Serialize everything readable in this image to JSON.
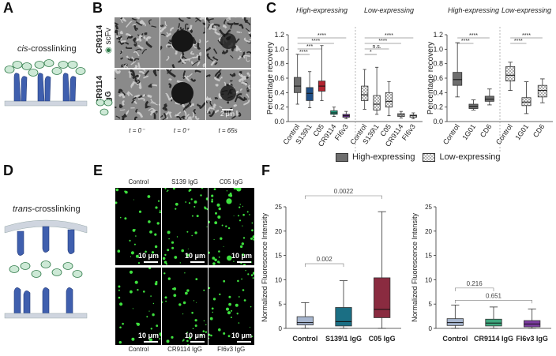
{
  "panels": {
    "A": "A",
    "B": "B",
    "C": "C",
    "D": "D",
    "E": "E",
    "F": "F"
  },
  "panelA": {
    "title_italic": "cis",
    "title_rest": "-crosslinking"
  },
  "panelD": {
    "title_italic": "trans",
    "title_rest": "-crosslinking"
  },
  "panelB": {
    "row1_label": "CR9114",
    "row1_sub": "scFv",
    "row2_label": "CR9114",
    "row2_sub": "IgG",
    "scalebar": "2 μm",
    "times": [
      "t = 0⁻",
      "t = 0⁺",
      "t = 65s"
    ],
    "colors": {
      "membrane": "#c8c8c8",
      "bleach": "#161616"
    }
  },
  "panelE": {
    "top_labels": [
      "Control",
      "S139 IgG",
      "C05 IgG"
    ],
    "bottom_labels": [
      "Control",
      "CR9114 IgG",
      "FI6v3 IgG"
    ],
    "scalebar": "10 μm",
    "colors": {
      "spot": "#3ee03e",
      "background": "#000000"
    }
  },
  "chart_data": [
    {
      "type": "box",
      "id": "C-left",
      "ylabel": "Percentage recovery",
      "ylim": [
        0,
        1.2
      ],
      "yticks": [
        "0.0",
        "0.2",
        "0.4",
        "0.6",
        "0.8",
        "1.0",
        "1.2"
      ],
      "group_labels": [
        "High-expressing",
        "Low-expressing"
      ],
      "categories": [
        "Control",
        "S139\\1",
        "C05",
        "CR9114",
        "FI6v3"
      ],
      "series": [
        {
          "name": "High-expressing",
          "boxes": [
            {
              "min": 0.24,
              "q1": 0.4,
              "median": 0.49,
              "q3": 0.61,
              "max": 0.93,
              "color": "#6e6e6e"
            },
            {
              "min": 0.19,
              "q1": 0.29,
              "median": 0.39,
              "q3": 0.47,
              "max": 0.69,
              "color": "#1f4f87"
            },
            {
              "min": 0.29,
              "q1": 0.42,
              "median": 0.49,
              "q3": 0.56,
              "max": 1.05,
              "color": "#b3232f"
            },
            {
              "min": 0.07,
              "q1": 0.1,
              "median": 0.12,
              "q3": 0.15,
              "max": 0.2,
              "color": "#1f9e7e"
            },
            {
              "min": 0.04,
              "q1": 0.06,
              "median": 0.08,
              "q3": 0.1,
              "max": 0.14,
              "color": "#6a2c91"
            }
          ]
        },
        {
          "name": "Low-expressing",
          "boxes": [
            {
              "min": 0.17,
              "q1": 0.29,
              "median": 0.37,
              "q3": 0.49,
              "max": 0.72,
              "color": "#6e6e6e"
            },
            {
              "min": 0.1,
              "q1": 0.16,
              "median": 0.24,
              "q3": 0.36,
              "max": 0.75,
              "color": "#1f4f87"
            },
            {
              "min": 0.08,
              "q1": 0.2,
              "median": 0.28,
              "q3": 0.4,
              "max": 0.55,
              "color": "#b3232f"
            },
            {
              "min": 0.05,
              "q1": 0.07,
              "median": 0.09,
              "q3": 0.11,
              "max": 0.14,
              "color": "#1f9e7e"
            },
            {
              "min": 0.04,
              "q1": 0.06,
              "median": 0.08,
              "q3": 0.09,
              "max": 0.12,
              "color": "#6a2c91"
            }
          ]
        }
      ],
      "significance": [
        {
          "group": 0,
          "from": 0,
          "to": 1,
          "label": "****"
        },
        {
          "group": 0,
          "from": 0,
          "to": 2,
          "label": "***"
        },
        {
          "group": 0,
          "from": 0,
          "to": 3,
          "label": "****"
        },
        {
          "group": 0,
          "from": 0,
          "to": 4,
          "label": "****"
        },
        {
          "group": 1,
          "from": 0,
          "to": 1,
          "label": "*"
        },
        {
          "group": 1,
          "from": 0,
          "to": 2,
          "label": "n.s."
        },
        {
          "group": 1,
          "from": 0,
          "to": 3,
          "label": "****"
        },
        {
          "group": 1,
          "from": 0,
          "to": 4,
          "label": "****"
        }
      ]
    },
    {
      "type": "box",
      "id": "C-right",
      "ylabel": "Percentage recovery",
      "ylim": [
        0,
        1.2
      ],
      "yticks": [
        "0.0",
        "0.2",
        "0.4",
        "0.6",
        "0.8",
        "1.0",
        "1.2"
      ],
      "group_labels": [
        "High-expressing",
        "Low-expressing"
      ],
      "categories": [
        "Control",
        "1G01",
        "CD6"
      ],
      "series": [
        {
          "name": "High-expressing",
          "boxes": [
            {
              "min": 0.34,
              "q1": 0.5,
              "median": 0.58,
              "q3": 0.68,
              "max": 1.09,
              "color": "#6e6e6e"
            },
            {
              "min": 0.16,
              "q1": 0.18,
              "median": 0.21,
              "q3": 0.24,
              "max": 0.3,
              "color": "#6e6e6e"
            },
            {
              "min": 0.23,
              "q1": 0.28,
              "median": 0.31,
              "q3": 0.35,
              "max": 0.45,
              "color": "#6e6e6e"
            }
          ]
        },
        {
          "name": "Low-expressing",
          "boxes": [
            {
              "min": 0.43,
              "q1": 0.56,
              "median": 0.64,
              "q3": 0.76,
              "max": 0.82,
              "color": "#6e6e6e"
            },
            {
              "min": 0.11,
              "q1": 0.22,
              "median": 0.27,
              "q3": 0.33,
              "max": 0.55,
              "color": "#6e6e6e"
            },
            {
              "min": 0.26,
              "q1": 0.34,
              "median": 0.43,
              "q3": 0.5,
              "max": 0.59,
              "color": "#6e6e6e"
            }
          ]
        }
      ],
      "significance": [
        {
          "group": 0,
          "from": 0,
          "to": 1,
          "label": "****"
        },
        {
          "group": 0,
          "from": 0,
          "to": 2,
          "label": "****"
        },
        {
          "group": 1,
          "from": 0,
          "to": 1,
          "label": "****"
        },
        {
          "group": 1,
          "from": 0,
          "to": 2,
          "label": "****"
        }
      ]
    },
    {
      "type": "box",
      "id": "F-left",
      "ylabel": "Normalized Fluorescence Intensity",
      "ylim": [
        0,
        25
      ],
      "yticks": [
        "0",
        "5",
        "10",
        "15",
        "20",
        "25"
      ],
      "categories": [
        "Control",
        "S139\\1 IgG",
        "C05 IgG"
      ],
      "boxes": [
        {
          "min": 0.0,
          "q1": 0.7,
          "median": 1.2,
          "q3": 2.4,
          "max": 5.3,
          "color": "#a7b6cf"
        },
        {
          "min": 0.0,
          "q1": 0.5,
          "median": 1.4,
          "q3": 4.3,
          "max": 9.8,
          "color": "#1b6f84"
        },
        {
          "min": 0.0,
          "q1": 2.2,
          "median": 3.9,
          "q3": 10.4,
          "max": 24.0,
          "color": "#8a2b40"
        }
      ],
      "significance": [
        {
          "from": 0,
          "to": 1,
          "label": "0.002"
        },
        {
          "from": 0,
          "to": 2,
          "label": "0.0022"
        }
      ]
    },
    {
      "type": "box",
      "id": "F-right",
      "ylabel": "Normalized Fluorescence Intensity",
      "ylim": [
        0,
        25
      ],
      "yticks": [
        "0",
        "5",
        "10",
        "15",
        "20",
        "25"
      ],
      "categories": [
        "Control",
        "CR9114 IgG",
        "FI6v3 IgG"
      ],
      "boxes": [
        {
          "min": 0.0,
          "q1": 0.6,
          "median": 1.2,
          "q3": 2.0,
          "max": 4.8,
          "color": "#a7b6cf"
        },
        {
          "min": 0.0,
          "q1": 0.5,
          "median": 1.1,
          "q3": 1.9,
          "max": 4.4,
          "color": "#3fa87e"
        },
        {
          "min": 0.0,
          "q1": 0.3,
          "median": 0.9,
          "q3": 1.6,
          "max": 4.0,
          "color": "#7b3ba0"
        }
      ],
      "significance": [
        {
          "from": 0,
          "to": 1,
          "label": "0.216"
        },
        {
          "from": 0,
          "to": 2,
          "label": "0.651"
        }
      ]
    }
  ],
  "legendC": {
    "items": [
      "High-expressing",
      "Low-expressing"
    ]
  }
}
